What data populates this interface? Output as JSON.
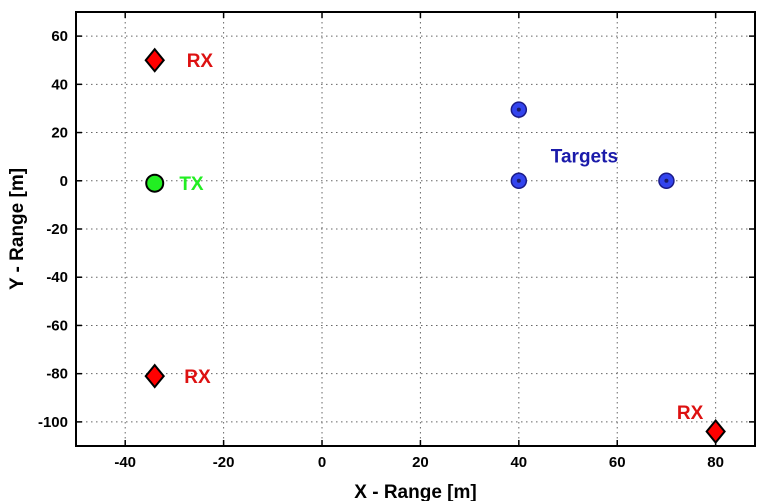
{
  "chart_data": {
    "type": "scatter",
    "title": "",
    "xlabel": "X - Range [m]",
    "ylabel": "Y - Range [m]",
    "xlim": [
      -50,
      88
    ],
    "ylim": [
      -110,
      70
    ],
    "xticks": [
      -40,
      -20,
      0,
      20,
      40,
      60,
      80
    ],
    "yticks": [
      -100,
      -80,
      -60,
      -40,
      -20,
      0,
      20,
      40,
      60
    ],
    "grid": true,
    "series": [
      {
        "key": "rx",
        "marker": "diamond",
        "color": "#ff0000",
        "points": [
          {
            "x": -34,
            "y": 50
          },
          {
            "x": -34,
            "y": -81
          },
          {
            "x": 80,
            "y": -104
          }
        ]
      },
      {
        "key": "tx",
        "marker": "circle",
        "color": "#22ee22",
        "points": [
          {
            "x": -34,
            "y": -1
          }
        ]
      },
      {
        "key": "targets",
        "marker": "circle",
        "color": "#3344ee",
        "points": [
          {
            "x": 40,
            "y": 29.5
          },
          {
            "x": 40,
            "y": 0
          },
          {
            "x": 70,
            "y": 0
          }
        ]
      }
    ],
    "annotations": [
      {
        "key": "rx-1",
        "text": "RX",
        "x": -27.5,
        "y": 50,
        "anchor": "start",
        "color": "#dd1111"
      },
      {
        "key": "rx-2",
        "text": "RX",
        "x": -28,
        "y": -81,
        "anchor": "start",
        "color": "#dd1111"
      },
      {
        "key": "rx-3",
        "text": "RX",
        "x": 77.5,
        "y": -96,
        "anchor": "end",
        "color": "#dd1111"
      },
      {
        "key": "tx",
        "text": "TX",
        "x": -29,
        "y": -1,
        "anchor": "start",
        "color": "#22ee22"
      },
      {
        "key": "targets",
        "text": "Targets",
        "x": 46.5,
        "y": 10.5,
        "anchor": "start",
        "color": "#1a1aaa"
      }
    ]
  }
}
